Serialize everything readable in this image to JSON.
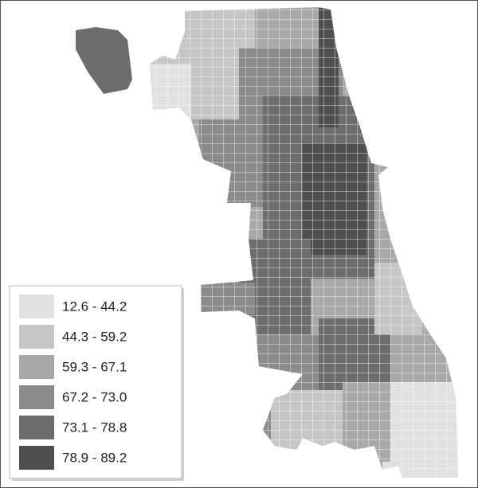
{
  "legend": {
    "entries": [
      {
        "label": "12.6 - 44.2",
        "color": "#e1e1e1"
      },
      {
        "label": "44.3 - 59.2",
        "color": "#c6c6c6"
      },
      {
        "label": "59.3 - 67.1",
        "color": "#a8a8a8"
      },
      {
        "label": "67.2 - 73.0",
        "color": "#8b8b8b"
      },
      {
        "label": "73.1 - 78.8",
        "color": "#6d6d6d"
      },
      {
        "label": "78.9 - 89.2",
        "color": "#4f4f4f"
      }
    ]
  }
}
